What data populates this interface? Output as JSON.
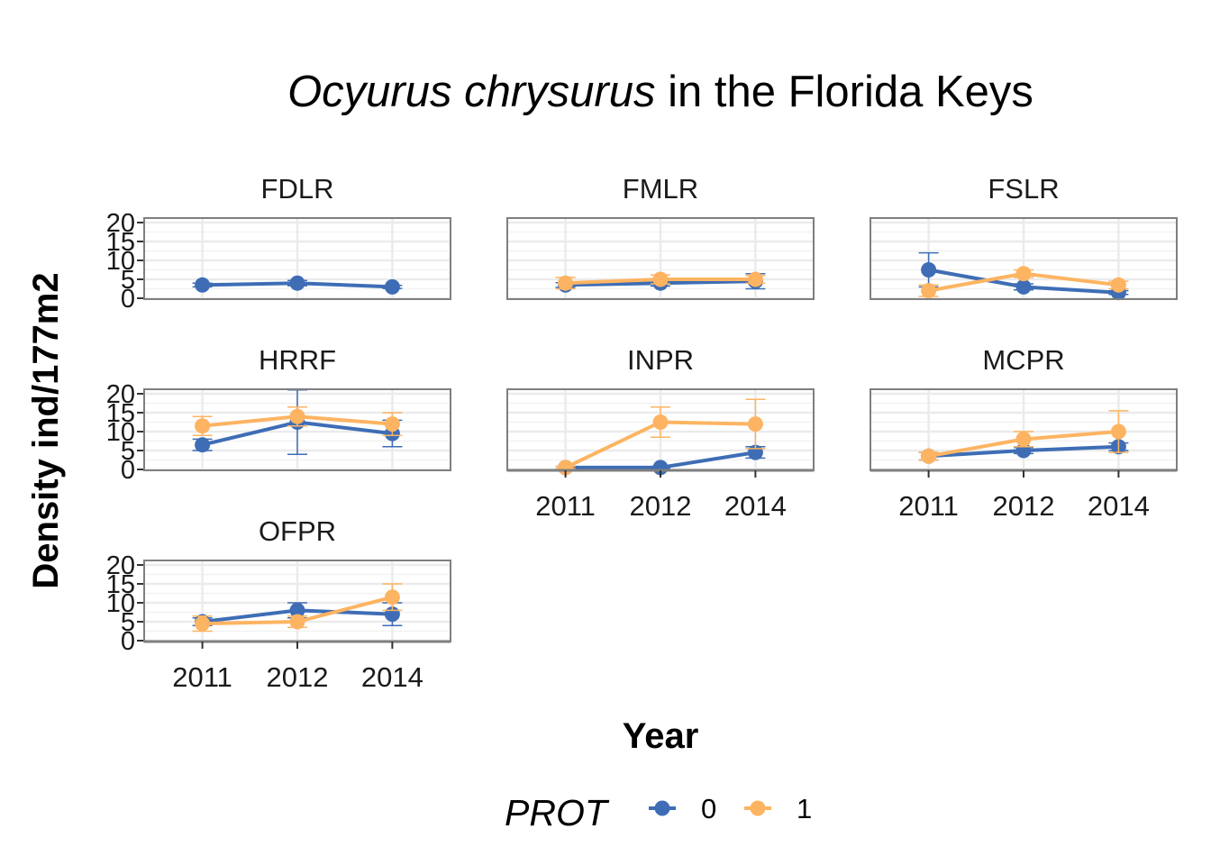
{
  "chart_data": {
    "type": "line",
    "title_species": "Ocyurus chrysurus",
    "title_rest": " in the Florida Keys",
    "xlabel": "Year",
    "ylabel": "Density ind/177m2",
    "x": [
      "2011",
      "2012",
      "2014"
    ],
    "y_ticks": [
      "0",
      "5",
      "10",
      "15",
      "20"
    ],
    "ylim": [
      0,
      20
    ],
    "grid": true,
    "legend": {
      "title": "PROT",
      "position": "bottom",
      "entries": [
        {
          "label": "0",
          "color": "#3E6DB5"
        },
        {
          "label": "1",
          "color": "#FDB462"
        }
      ]
    },
    "panels": [
      {
        "name": "FDLR",
        "series": [
          {
            "prot": "0",
            "values": [
              3.5,
              4.0,
              3.0
            ],
            "err": [
              0.5,
              0.7,
              0.4
            ]
          },
          {
            "prot": "1",
            "values": [
              null,
              null,
              null
            ],
            "err": [
              null,
              null,
              null
            ]
          }
        ]
      },
      {
        "name": "FMLR",
        "series": [
          {
            "prot": "0",
            "values": [
              3.5,
              4.0,
              4.5
            ],
            "err": [
              0.6,
              0.8,
              2.0
            ]
          },
          {
            "prot": "1",
            "values": [
              4.0,
              5.0,
              5.0
            ],
            "err": [
              1.5,
              1.2,
              1.0
            ]
          }
        ]
      },
      {
        "name": "FSLR",
        "series": [
          {
            "prot": "0",
            "values": [
              7.5,
              3.0,
              1.5
            ],
            "err": [
              4.5,
              0.8,
              0.5
            ]
          },
          {
            "prot": "1",
            "values": [
              2.0,
              6.5,
              3.5
            ],
            "err": [
              1.5,
              1.0,
              1.0
            ]
          }
        ]
      },
      {
        "name": "HRRF",
        "series": [
          {
            "prot": "0",
            "values": [
              6.5,
              12.5,
              9.5
            ],
            "err": [
              1.5,
              8.5,
              3.5
            ]
          },
          {
            "prot": "1",
            "values": [
              11.5,
              14.0,
              12.0
            ],
            "err": [
              2.5,
              2.5,
              3.0
            ]
          }
        ]
      },
      {
        "name": "INPR",
        "series": [
          {
            "prot": "0",
            "values": [
              0.5,
              0.5,
              4.5
            ],
            "err": [
              0.3,
              0.3,
              1.5
            ]
          },
          {
            "prot": "1",
            "values": [
              0.5,
              12.5,
              12.0
            ],
            "err": [
              0.3,
              4.0,
              6.5
            ]
          }
        ]
      },
      {
        "name": "MCPR",
        "series": [
          {
            "prot": "0",
            "values": [
              3.5,
              5.0,
              6.0
            ],
            "err": [
              1.0,
              0.8,
              1.0
            ]
          },
          {
            "prot": "1",
            "values": [
              3.5,
              8.0,
              10.0
            ],
            "err": [
              1.0,
              2.0,
              5.5
            ]
          }
        ]
      },
      {
        "name": "OFPR",
        "series": [
          {
            "prot": "0",
            "values": [
              5.0,
              8.0,
              7.0
            ],
            "err": [
              1.0,
              2.0,
              3.0
            ]
          },
          {
            "prot": "1",
            "values": [
              4.5,
              5.0,
              11.5
            ],
            "err": [
              2.0,
              1.5,
              3.5
            ]
          }
        ]
      }
    ]
  }
}
